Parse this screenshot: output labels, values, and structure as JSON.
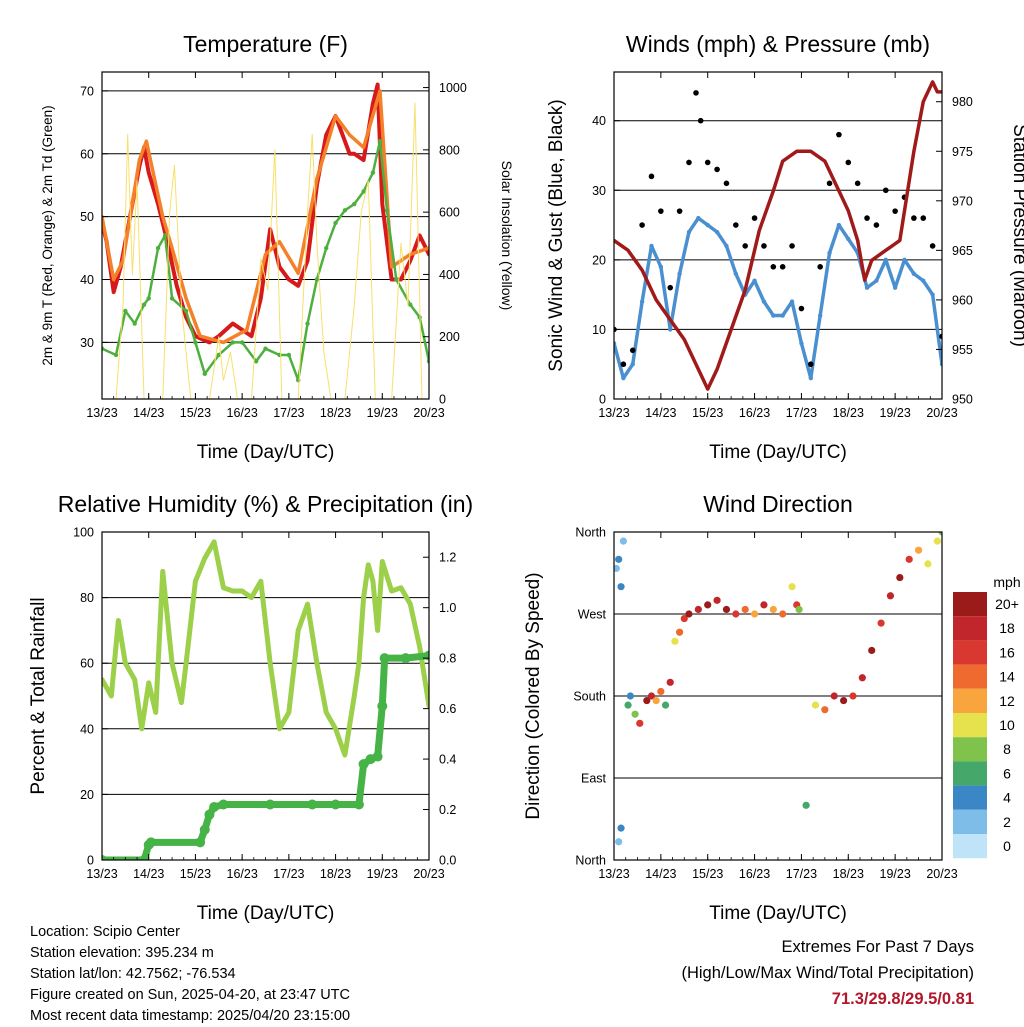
{
  "colors": {
    "temp2m": "#d7191c",
    "temp9m": "#f4802a",
    "dewpoint": "#4daf3e",
    "solar": "#f7e06b",
    "wind": "#4a90d0",
    "gust": "#000000",
    "pressure": "#a11a1a",
    "rh": "#9ccf4a",
    "precip": "#45b345"
  },
  "wind_speed_scale": {
    "title": "mph",
    "labels": [
      "20+",
      "18",
      "16",
      "14",
      "12",
      "10",
      "8",
      "6",
      "4",
      "2",
      "0"
    ],
    "colors": [
      "#9b1b1b",
      "#c0262b",
      "#d8382f",
      "#ee6a2e",
      "#f8a53e",
      "#e6e24e",
      "#7fc24c",
      "#45a86a",
      "#3b86c4",
      "#7fbde9",
      "#bfe3f7"
    ]
  },
  "info": {
    "location": "Location: Scipio Center",
    "elevation": "Station elevation: 395.234 m",
    "latlon": "Station lat/lon: 42.7562; -76.534",
    "created": "Figure created on Sun, 2025-04-20, at 23:47 UTC",
    "recent": "Most recent data timestamp: 2025/04/20 23:15:00"
  },
  "extremes": {
    "title": "Extremes For Past 7 Days",
    "subtitle": "(High/Low/Max Wind/Total Precipitation)",
    "values": "71.3/29.8/29.5/0.81"
  },
  "chart_data": [
    {
      "id": "temperature",
      "type": "line",
      "title": "Temperature (F)",
      "xlabel": "Time (Day/UTC)",
      "ylabel": "2m & 9m T (Red, Orange) & 2m Td (Green)",
      "y2label": "Solar Insolation (Yellow)",
      "xticks": [
        "13/23",
        "14/23",
        "15/23",
        "16/23",
        "17/23",
        "18/23",
        "19/23",
        "20/23"
      ],
      "xlim": [
        0,
        7
      ],
      "ylim": [
        21,
        73
      ],
      "yticks": [
        30,
        40,
        50,
        60,
        70
      ],
      "y2lim": [
        0,
        1050
      ],
      "y2ticks": [
        0,
        200,
        400,
        600,
        800,
        1000
      ],
      "series": [
        {
          "key": "temp2m",
          "x": [
            0,
            0.1,
            0.25,
            0.4,
            0.6,
            0.8,
            0.9,
            1.0,
            1.2,
            1.4,
            1.6,
            1.8,
            2.0,
            2.3,
            2.5,
            2.8,
            3.0,
            3.2,
            3.4,
            3.6,
            3.8,
            4.0,
            4.2,
            4.4,
            4.6,
            4.8,
            5.0,
            5.2,
            5.3,
            5.4,
            5.6,
            5.8,
            5.9,
            6.0,
            6.2,
            6.4,
            6.6,
            6.8,
            7.0
          ],
          "y": [
            49,
            46,
            38,
            42,
            50,
            58,
            61,
            57,
            52,
            46,
            39,
            34,
            31,
            30,
            31,
            33,
            32,
            31,
            37,
            48,
            42,
            40,
            39,
            43,
            55,
            63,
            66,
            62,
            60,
            60,
            59,
            68,
            71,
            52,
            40,
            40,
            43,
            47,
            44
          ]
        },
        {
          "key": "temp9m",
          "x": [
            0,
            0.25,
            0.45,
            0.8,
            0.95,
            1.3,
            1.5,
            1.8,
            2.1,
            2.6,
            3.1,
            3.5,
            3.8,
            4.2,
            4.6,
            5.0,
            5.3,
            5.6,
            5.95,
            6.2,
            6.6,
            7.0
          ],
          "y": [
            50,
            40,
            43,
            59,
            62,
            50,
            45,
            37,
            31,
            30,
            32,
            44,
            46,
            41,
            56,
            66,
            63,
            61,
            70,
            42,
            44,
            45
          ]
        },
        {
          "key": "dewpoint",
          "x": [
            0,
            0.3,
            0.5,
            0.7,
            0.9,
            1.0,
            1.2,
            1.35,
            1.5,
            1.8,
            2.0,
            2.2,
            2.5,
            2.8,
            3.0,
            3.3,
            3.5,
            3.8,
            4.0,
            4.2,
            4.4,
            4.6,
            4.8,
            5.0,
            5.2,
            5.4,
            5.6,
            5.8,
            5.95,
            6.1,
            6.3,
            6.6,
            6.8,
            7.0
          ],
          "y": [
            29,
            28,
            35,
            33,
            36,
            37,
            45,
            47,
            37,
            35,
            30,
            25,
            28,
            30,
            30,
            27,
            29,
            28,
            28,
            24,
            33,
            40,
            45,
            49,
            51,
            52,
            54,
            57,
            62,
            51,
            40,
            36,
            34,
            27
          ]
        },
        {
          "key": "solar",
          "x": [
            0.3,
            0.45,
            0.55,
            0.65,
            0.75,
            0.9,
            1.3,
            1.45,
            1.55,
            1.7,
            1.9,
            2.3,
            2.5,
            2.6,
            2.75,
            2.9,
            3.2,
            3.4,
            3.55,
            3.7,
            3.85,
            4.2,
            4.4,
            4.5,
            4.6,
            4.75,
            4.9,
            5.2,
            5.4,
            5.55,
            5.7,
            5.85,
            6.2,
            6.4,
            6.55,
            6.7,
            6.85
          ],
          "y": [
            0,
            300,
            850,
            400,
            700,
            0,
            0,
            600,
            750,
            300,
            0,
            0,
            200,
            60,
            150,
            0,
            0,
            450,
            350,
            800,
            0,
            0,
            600,
            850,
            500,
            150,
            0,
            0,
            300,
            600,
            700,
            0,
            0,
            500,
            300,
            950,
            0
          ]
        }
      ]
    },
    {
      "id": "winds",
      "type": "scatter",
      "title": "Winds (mph) & Pressure (mb)",
      "xlabel": "Time (Day/UTC)",
      "ylabel": "Sonic Wind & Gust (Blue, Black)",
      "y2label": "Station Pressure (Maroon)",
      "xticks": [
        "13/23",
        "14/23",
        "15/23",
        "16/23",
        "17/23",
        "18/23",
        "19/23",
        "20/23"
      ],
      "xlim": [
        0,
        7
      ],
      "ylim": [
        0,
        47
      ],
      "yticks": [
        0,
        10,
        20,
        30,
        40
      ],
      "y2lim": [
        950,
        983
      ],
      "y2ticks": [
        950,
        955,
        960,
        965,
        970,
        975,
        980
      ],
      "series": [
        {
          "key": "wind",
          "x": [
            0,
            0.2,
            0.4,
            0.6,
            0.8,
            1.0,
            1.2,
            1.4,
            1.6,
            1.8,
            2.0,
            2.2,
            2.4,
            2.6,
            2.8,
            3.0,
            3.2,
            3.4,
            3.6,
            3.8,
            4.0,
            4.2,
            4.4,
            4.6,
            4.8,
            5.0,
            5.2,
            5.4,
            5.6,
            5.8,
            6.0,
            6.2,
            6.4,
            6.6,
            6.8,
            7.0
          ],
          "y": [
            8,
            3,
            5,
            14,
            22,
            19,
            10,
            18,
            24,
            26,
            25,
            24,
            22,
            18,
            15,
            17,
            14,
            12,
            12,
            14,
            8,
            3,
            12,
            21,
            25,
            23,
            21,
            16,
            17,
            20,
            16,
            20,
            18,
            17,
            15,
            5
          ]
        },
        {
          "key": "gust",
          "x": [
            0,
            0.2,
            0.4,
            0.6,
            0.8,
            1.0,
            1.2,
            1.4,
            1.6,
            1.75,
            1.85,
            2.0,
            2.2,
            2.4,
            2.6,
            2.8,
            3.0,
            3.2,
            3.4,
            3.6,
            3.8,
            4.0,
            4.2,
            4.4,
            4.6,
            4.8,
            5.0,
            5.2,
            5.4,
            5.6,
            5.8,
            6.0,
            6.2,
            6.4,
            6.6,
            6.8,
            7.0
          ],
          "y": [
            10,
            5,
            7,
            25,
            32,
            27,
            16,
            27,
            34,
            44,
            40,
            34,
            33,
            31,
            25,
            22,
            26,
            22,
            19,
            19,
            22,
            13,
            5,
            19,
            31,
            38,
            34,
            31,
            26,
            25,
            30,
            27,
            29,
            26,
            26,
            22,
            9
          ]
        },
        {
          "key": "pressure",
          "x": [
            0,
            0.3,
            0.6,
            0.9,
            1.2,
            1.5,
            1.8,
            2.0,
            2.2,
            2.5,
            2.8,
            3.1,
            3.4,
            3.6,
            3.9,
            4.2,
            4.5,
            4.8,
            5.0,
            5.2,
            5.35,
            5.5,
            5.8,
            6.1,
            6.4,
            6.6,
            6.8,
            6.9,
            7.0
          ],
          "y": [
            966,
            965,
            963,
            960,
            958,
            956,
            953,
            951,
            953,
            957,
            961,
            967,
            971,
            974,
            975,
            975,
            974,
            971,
            969,
            966,
            962,
            964,
            965,
            966,
            975,
            980,
            982,
            981,
            981
          ]
        }
      ]
    },
    {
      "id": "humidity",
      "type": "line",
      "title": "Relative Humidity (%) & Precipitation (in)",
      "xlabel": "Time (Day/UTC)",
      "ylabel": "Percent & Total Rainfall",
      "xticks": [
        "13/23",
        "14/23",
        "15/23",
        "16/23",
        "17/23",
        "18/23",
        "19/23",
        "20/23"
      ],
      "xlim": [
        0,
        7
      ],
      "ylim": [
        0,
        100
      ],
      "yticks": [
        0,
        20,
        40,
        60,
        80,
        100
      ],
      "y2lim": [
        0,
        1.3
      ],
      "y2ticks": [
        0.0,
        0.2,
        0.4,
        0.6,
        0.8,
        1.0,
        1.2
      ],
      "y2ticklabels": [
        "0.0",
        "0.2",
        "0.4",
        "0.6",
        "0.8",
        "1.0",
        "1.2"
      ],
      "series": [
        {
          "key": "rh",
          "x": [
            0,
            0.2,
            0.35,
            0.5,
            0.7,
            0.85,
            1.0,
            1.15,
            1.3,
            1.5,
            1.7,
            1.8,
            2.0,
            2.2,
            2.4,
            2.6,
            2.8,
            3.0,
            3.2,
            3.4,
            3.6,
            3.8,
            4.0,
            4.2,
            4.4,
            4.6,
            4.8,
            5.0,
            5.2,
            5.4,
            5.5,
            5.6,
            5.7,
            5.8,
            5.9,
            6.0,
            6.2,
            6.4,
            6.6,
            6.8,
            7.0
          ],
          "y": [
            55,
            50,
            73,
            60,
            55,
            40,
            54,
            45,
            88,
            60,
            48,
            60,
            85,
            92,
            97,
            83,
            82,
            82,
            80,
            85,
            60,
            40,
            45,
            70,
            78,
            60,
            45,
            40,
            32,
            50,
            60,
            80,
            90,
            85,
            70,
            91,
            82,
            83,
            78,
            65,
            47
          ]
        },
        {
          "key": "precip",
          "x": [
            0,
            0.9,
            1.0,
            1.05,
            2.1,
            2.2,
            2.3,
            2.4,
            2.6,
            3.6,
            4.5,
            5.0,
            5.5,
            5.6,
            5.75,
            5.9,
            6.0,
            6.05,
            6.5,
            7.0
          ],
          "y": [
            0.0,
            0.0,
            0.06,
            0.07,
            0.07,
            0.12,
            0.18,
            0.21,
            0.22,
            0.22,
            0.22,
            0.22,
            0.22,
            0.38,
            0.4,
            0.41,
            0.61,
            0.8,
            0.8,
            0.81
          ]
        }
      ]
    },
    {
      "id": "direction",
      "type": "scatter",
      "title": "Wind Direction",
      "xlabel": "Time (Day/UTC)",
      "ylabel": "Direction (Colored By Speed)",
      "xticks": [
        "13/23",
        "14/23",
        "15/23",
        "16/23",
        "17/23",
        "18/23",
        "19/23",
        "20/23"
      ],
      "xlim": [
        0,
        7
      ],
      "ylim": [
        0,
        360
      ],
      "yticks": [
        0,
        90,
        180,
        270,
        360
      ],
      "yticklabels": [
        "North",
        "East",
        "South",
        "West",
        "North"
      ],
      "series": [
        {
          "key": "direction",
          "x": [
            0.05,
            0.1,
            0.15,
            0.2,
            0.1,
            0.15,
            0.3,
            0.35,
            0.45,
            0.55,
            0.7,
            0.8,
            0.9,
            1.0,
            1.1,
            1.2,
            1.3,
            1.4,
            1.5,
            1.6,
            1.8,
            2.0,
            2.2,
            2.4,
            2.6,
            2.8,
            3.0,
            3.2,
            3.4,
            3.6,
            3.8,
            3.9,
            3.95,
            4.1,
            4.3,
            4.5,
            4.7,
            4.9,
            5.1,
            5.3,
            5.5,
            5.7,
            5.9,
            6.1,
            6.3,
            6.5,
            6.7,
            6.9,
            7.0
          ],
          "y": [
            320,
            330,
            300,
            350,
            20,
            35,
            170,
            180,
            160,
            150,
            175,
            180,
            175,
            185,
            170,
            195,
            240,
            250,
            265,
            270,
            275,
            280,
            285,
            275,
            270,
            275,
            270,
            280,
            275,
            270,
            300,
            280,
            275,
            60,
            170,
            165,
            180,
            175,
            180,
            200,
            230,
            260,
            290,
            310,
            330,
            340,
            325,
            350,
            360
          ],
          "speed": [
            2,
            3,
            4,
            2,
            2,
            3,
            6,
            4,
            8,
            16,
            20,
            18,
            12,
            14,
            6,
            18,
            10,
            14,
            16,
            20,
            18,
            20,
            18,
            20,
            16,
            14,
            12,
            18,
            12,
            14,
            10,
            16,
            8,
            6,
            10,
            14,
            18,
            20,
            16,
            18,
            20,
            16,
            18,
            20,
            16,
            12,
            10,
            10,
            8
          ]
        }
      ]
    }
  ]
}
